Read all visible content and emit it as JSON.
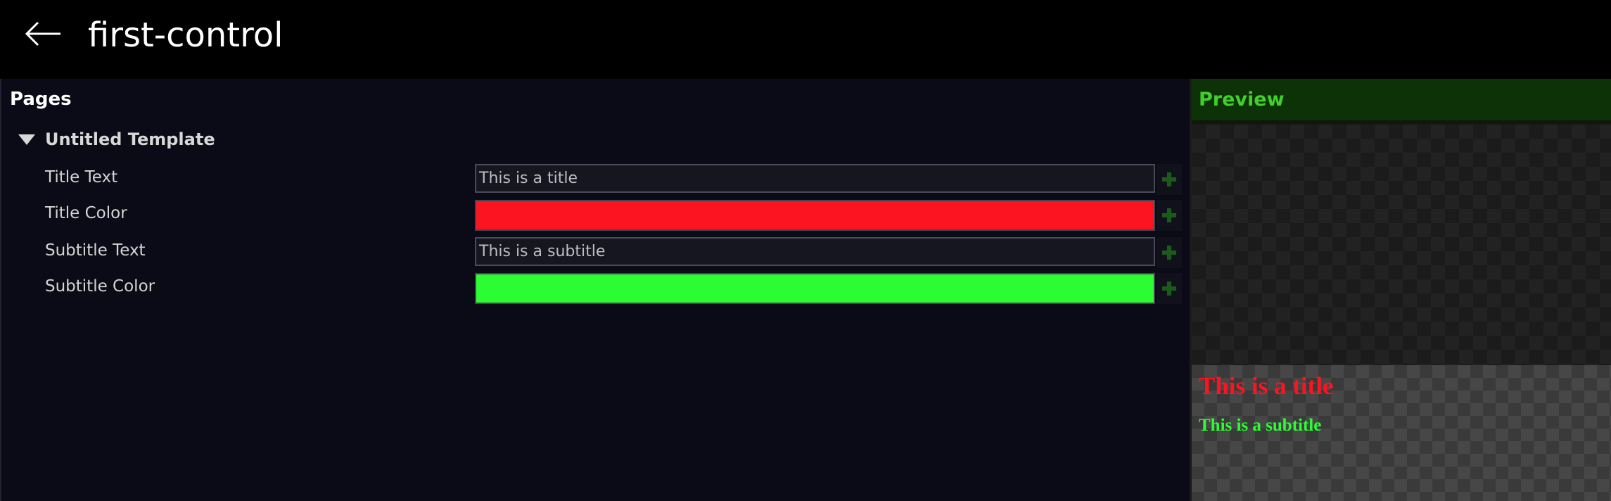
{
  "app": {
    "title": "first-control",
    "back_icon": "arrow-left-icon"
  },
  "pages_panel": {
    "header": "Pages",
    "template": {
      "label": "Untitled Template",
      "expand_icon": "caret-down-icon"
    },
    "fields": [
      {
        "label": "Title Text",
        "type": "text",
        "value": "This is a title"
      },
      {
        "label": "Title Color",
        "type": "color",
        "value": "#fc1420"
      },
      {
        "label": "Subtitle Text",
        "type": "text",
        "value": "This is a subtitle"
      },
      {
        "label": "Subtitle Color",
        "type": "color",
        "value": "#2cfd32"
      }
    ],
    "add_icon": "plus-icon"
  },
  "preview": {
    "header": "Preview",
    "header_color": "#3fd02a",
    "title_text": "This is a title",
    "title_color": "#fc1420",
    "subtitle_text": "This is a subtitle",
    "subtitle_color": "#2cfd32"
  }
}
